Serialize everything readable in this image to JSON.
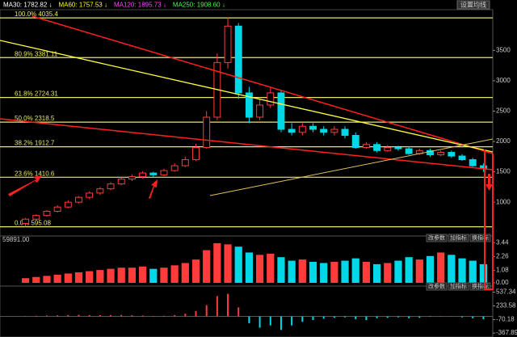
{
  "header": {
    "ma": [
      {
        "text": "MA30: 1782.82 ↓",
        "color": "#ffffff"
      },
      {
        "text": "MA60: 1757.53 ↓",
        "color": "#ffff00"
      },
      {
        "text": "MA120: 1895.73 ↓",
        "color": "#ff44ff"
      },
      {
        "text": "MA250: 1908.60 ↓",
        "color": "#44ff44"
      }
    ],
    "button": "设置均线"
  },
  "chart_data": [
    {
      "type": "candlestick",
      "open": [
        650,
        720,
        780,
        850,
        920,
        1000,
        1080,
        1150,
        1220,
        1300,
        1380,
        1420,
        1480,
        1450,
        1520,
        1600,
        1700,
        1900,
        2400,
        3300,
        3900,
        2800,
        2400,
        2600,
        2800,
        2200,
        2150,
        2250,
        2200,
        2150,
        2200,
        2100,
        1900,
        1950,
        1850,
        1900,
        1880,
        1800,
        1850,
        1780,
        1820,
        1760,
        1700,
        1600
      ],
      "high": [
        740,
        800,
        870,
        950,
        1030,
        1100,
        1180,
        1250,
        1330,
        1410,
        1460,
        1510,
        1500,
        1550,
        1640,
        1750,
        1960,
        2500,
        3450,
        4035.4,
        3950,
        2900,
        2700,
        2900,
        2850,
        2300,
        2300,
        2300,
        2250,
        2250,
        2250,
        2150,
        1990,
        1990,
        1940,
        1930,
        1920,
        1880,
        1880,
        1850,
        1850,
        1790,
        1730,
        1640
      ],
      "low": [
        595.08,
        700,
        760,
        830,
        900,
        980,
        1050,
        1120,
        1200,
        1280,
        1350,
        1390,
        1420,
        1430,
        1500,
        1580,
        1680,
        1880,
        2350,
        3200,
        2700,
        2300,
        2350,
        2550,
        2150,
        2100,
        2100,
        2150,
        2100,
        2100,
        2050,
        1880,
        1880,
        1820,
        1830,
        1850,
        1780,
        1780,
        1750,
        1760,
        1730,
        1680,
        1580,
        1500
      ],
      "close": [
        720,
        780,
        850,
        920,
        1000,
        1080,
        1150,
        1220,
        1300,
        1380,
        1420,
        1480,
        1450,
        1520,
        1600,
        1700,
        1900,
        2400,
        3300,
        3900,
        2800,
        2400,
        2600,
        2800,
        2200,
        2150,
        2250,
        2200,
        2150,
        2200,
        2100,
        1900,
        1950,
        1850,
        1900,
        1880,
        1800,
        1850,
        1780,
        1820,
        1760,
        1700,
        1600,
        1560
      ],
      "up_color": "#ff3b3b",
      "down_color": "#00d8e8",
      "ylim": [
        470,
        4130
      ],
      "yticks": [
        1000,
        1500,
        2000,
        2500,
        3000,
        3500
      ],
      "levels": [
        {
          "value": 4035.4,
          "label": "100.0% 4035.4"
        },
        {
          "value": 3381.11,
          "label": "80.9% 3381.11"
        },
        {
          "value": 2724.31,
          "label": "61.8% 2724.31"
        },
        {
          "value": 2318.5,
          "label": "50.0% 2318.5"
        },
        {
          "value": 1912.7,
          "label": "38.2% 1912.7"
        },
        {
          "value": 1410.6,
          "label": "23.6% 1410.6"
        },
        {
          "value": 595.08,
          "label": "0.0% 595.08"
        }
      ],
      "level_color": "#e8e86a"
    },
    {
      "type": "bar",
      "title": "59891.00",
      "values": [
        0.4,
        0.5,
        0.6,
        0.7,
        0.8,
        0.9,
        1.0,
        1.1,
        1.2,
        1.3,
        1.3,
        1.4,
        1.2,
        1.3,
        1.5,
        1.7,
        2.0,
        2.8,
        3.4,
        3.3,
        3.1,
        2.6,
        2.4,
        2.5,
        2.2,
        1.9,
        2.0,
        1.8,
        1.7,
        1.8,
        1.9,
        2.1,
        1.8,
        1.6,
        1.7,
        1.9,
        2.2,
        2.0,
        2.3,
        2.6,
        2.4,
        2.1,
        1.9,
        1.6
      ],
      "ylim": [
        0,
        3.6
      ],
      "yticks": [
        3.44,
        2.26,
        1.08,
        {
          "value": 0,
          "label": "0.00"
        }
      ],
      "buttons": [
        "改参数",
        "加指标",
        "换指标"
      ]
    },
    {
      "type": "macd",
      "values": [
        10,
        15,
        20,
        25,
        30,
        35,
        30,
        28,
        30,
        32,
        25,
        20,
        10,
        15,
        30,
        60,
        120,
        250,
        450,
        500,
        200,
        -150,
        -250,
        -200,
        -300,
        -200,
        -120,
        -80,
        -50,
        -30,
        -20,
        -60,
        -80,
        -40,
        -30,
        -20,
        -40,
        -30,
        -10,
        10,
        5,
        -20,
        -40,
        -60
      ],
      "ylim": [
        -420,
        600
      ],
      "yticks": [
        537.34,
        233.58,
        -70.18,
        -367.89
      ],
      "buttons": [
        "改参数",
        "加指标",
        "换指标"
      ]
    }
  ]
}
